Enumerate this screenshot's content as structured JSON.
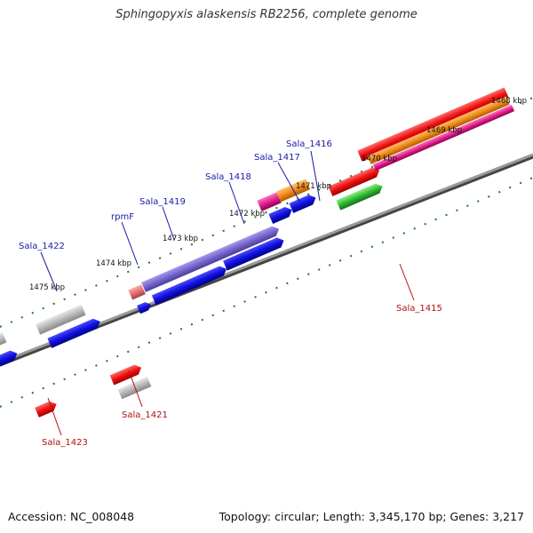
{
  "title": "Sphingopyxis alaskensis RB2256, complete genome",
  "footer": {
    "accession": "Accession: NC_008048",
    "summary": "Topology: circular; Length: 3,345,170 bp; Genes: 3,217"
  },
  "kbp_labels": [
    "1468 kbp",
    "1469 kbp",
    "1470 kbp",
    "1471 kbp",
    "1472 kbp",
    "1473 kbp",
    "1474 kbp",
    "1475 kbp"
  ],
  "gene_labels_top": [
    "Sala_1416",
    "Sala_1417",
    "Sala_1418",
    "Sala_1419",
    "rpmF",
    "Sala_1422"
  ],
  "gene_labels_bottom": [
    "Sala_1415",
    "Sala_1421",
    "Sala_1423"
  ],
  "colors": {
    "backbone": "#7a7a7a",
    "tick": "#1f7a1f",
    "red": "#ee1111",
    "blue": "#1111dd",
    "purple": "#7766cc",
    "gray": "#b8b8b8",
    "orange": "#f08c1a",
    "magenta": "#e0208a",
    "green": "#33bb33",
    "salmon": "#e87070"
  }
}
